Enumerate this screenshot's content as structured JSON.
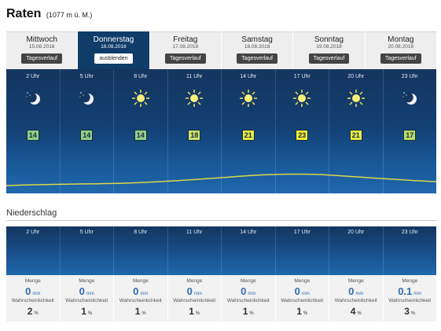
{
  "header": {
    "title": "Raten",
    "altitude": "(1077 m ü. M.)"
  },
  "days": [
    {
      "day": "Mittwoch",
      "date": "15.08.2018",
      "button": "Tagesverlauf",
      "active": false
    },
    {
      "day": "Donnerstag",
      "date": "16.08.2018",
      "button": "ausblenden",
      "active": true
    },
    {
      "day": "Freitag",
      "date": "17.08.2018",
      "button": "Tagesverlauf",
      "active": false
    },
    {
      "day": "Samstag",
      "date": "18.08.2018",
      "button": "Tagesverlauf",
      "active": false
    },
    {
      "day": "Sonntag",
      "date": "19.08.2018",
      "button": "Tagesverlauf",
      "active": false
    },
    {
      "day": "Montag",
      "date": "20.08.2018",
      "button": "Tagesverlauf",
      "active": false
    }
  ],
  "hours": [
    {
      "time": "2 Uhr",
      "icon": "moon-clear-icon",
      "temp": "14",
      "temp_color": "#8fd08a"
    },
    {
      "time": "5 Uhr",
      "icon": "moon-clear-icon",
      "temp": "14",
      "temp_color": "#8fd08a"
    },
    {
      "time": "8 Uhr",
      "icon": "sun-icon",
      "temp": "14",
      "temp_color": "#8fd08a"
    },
    {
      "time": "11 Uhr",
      "icon": "sun-icon",
      "temp": "18",
      "temp_color": "#c9e36a"
    },
    {
      "time": "14 Uhr",
      "icon": "sun-icon",
      "temp": "21",
      "temp_color": "#e4eb4a"
    },
    {
      "time": "17 Uhr",
      "icon": "sun-icon",
      "temp": "23",
      "temp_color": "#eeee3c"
    },
    {
      "time": "20 Uhr",
      "icon": "sun-icon",
      "temp": "21",
      "temp_color": "#e4eb4a"
    },
    {
      "time": "23 Uhr",
      "icon": "moon-clear-icon",
      "temp": "17",
      "temp_color": "#b9de6c"
    }
  ],
  "precipitation": {
    "section_title": "Niederschlag",
    "amount_label": "Menge",
    "probability_label": "Wahrscheinlichkeit",
    "amount_unit": "mm",
    "probability_unit": "%",
    "items": [
      {
        "time": "2 Uhr",
        "amount": "0",
        "probability": "2"
      },
      {
        "time": "5 Uhr",
        "amount": "0",
        "probability": "1"
      },
      {
        "time": "8 Uhr",
        "amount": "0",
        "probability": "1"
      },
      {
        "time": "11 Uhr",
        "amount": "0",
        "probability": "1"
      },
      {
        "time": "14 Uhr",
        "amount": "0",
        "probability": "1"
      },
      {
        "time": "17 Uhr",
        "amount": "0",
        "probability": "1"
      },
      {
        "time": "20 Uhr",
        "amount": "0",
        "probability": "4"
      },
      {
        "time": "23 Uhr",
        "amount": "0.1",
        "probability": "3"
      }
    ]
  },
  "colors": {
    "temperature_line": "#d9d94a",
    "sky_top": "#14355f",
    "sky_bottom": "#2068ad",
    "active_tab": "#0f3c68",
    "value_blue": "#2f6db0"
  }
}
